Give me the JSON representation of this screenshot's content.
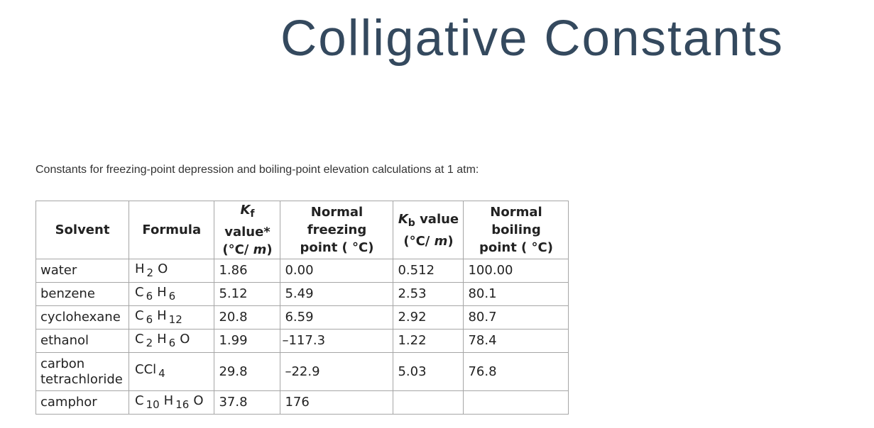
{
  "title": "Colligative Constants",
  "intro": "Constants for freezing-point depression and boiling-point elevation calculations at 1 atm:",
  "table": {
    "headers": {
      "solvent": "Solvent",
      "formula": "Formula",
      "kf_symbol": "K",
      "kf_subscript": "f",
      "kf_label": " value*",
      "kf_unit_open": "(°C/ ",
      "kf_unit_m": "m",
      "kf_unit_close": ")",
      "fp_line1": "Normal freezing",
      "fp_line2": "point ( °C)",
      "kb_symbol": "K",
      "kb_subscript": "b",
      "kb_label": " value",
      "kb_unit_open": "(°C/ ",
      "kb_unit_m": "m",
      "kb_unit_close": ")",
      "bp_line1": "Normal boiling",
      "bp_line2": "point ( °C)"
    },
    "rows": [
      {
        "solvent": "water",
        "formula": [
          {
            "el": "H",
            "sub": "2"
          },
          {
            "el": "O",
            "sub": ""
          }
        ],
        "kf": "1.86",
        "fp": "0.00",
        "kb": "0.512",
        "bp": "100.00"
      },
      {
        "solvent": "benzene",
        "formula": [
          {
            "el": "C",
            "sub": "6"
          },
          {
            "el": "H",
            "sub": "6"
          }
        ],
        "kf": "5.12",
        "fp": "5.49",
        "kb": "2.53",
        "bp": "80.1"
      },
      {
        "solvent": "cyclohexane",
        "formula": [
          {
            "el": "C",
            "sub": "6"
          },
          {
            "el": "H",
            "sub": "12"
          }
        ],
        "kf": "20.8",
        "fp": "6.59",
        "kb": "2.92",
        "bp": "80.7"
      },
      {
        "solvent": "ethanol",
        "formula": [
          {
            "el": "C",
            "sub": "2"
          },
          {
            "el": "H",
            "sub": "6"
          },
          {
            "el": "O",
            "sub": ""
          }
        ],
        "kf": "1.99",
        "fp": "–117.3",
        "kb": "1.22",
        "bp": "78.4"
      },
      {
        "solvent_line1": "carbon",
        "solvent_line2": "tetrachloride",
        "formula": [
          {
            "el": "CCl",
            "sub": "4"
          }
        ],
        "kf": "29.8",
        "fp": "–22.9",
        "kb": "5.03",
        "bp": "76.8"
      },
      {
        "solvent": "camphor",
        "formula": [
          {
            "el": "C",
            "sub": "10"
          },
          {
            "el": "H",
            "sub": "16"
          },
          {
            "el": "O",
            "sub": ""
          }
        ],
        "kf": "37.8",
        "fp": "176",
        "kb": "",
        "bp": ""
      }
    ]
  }
}
